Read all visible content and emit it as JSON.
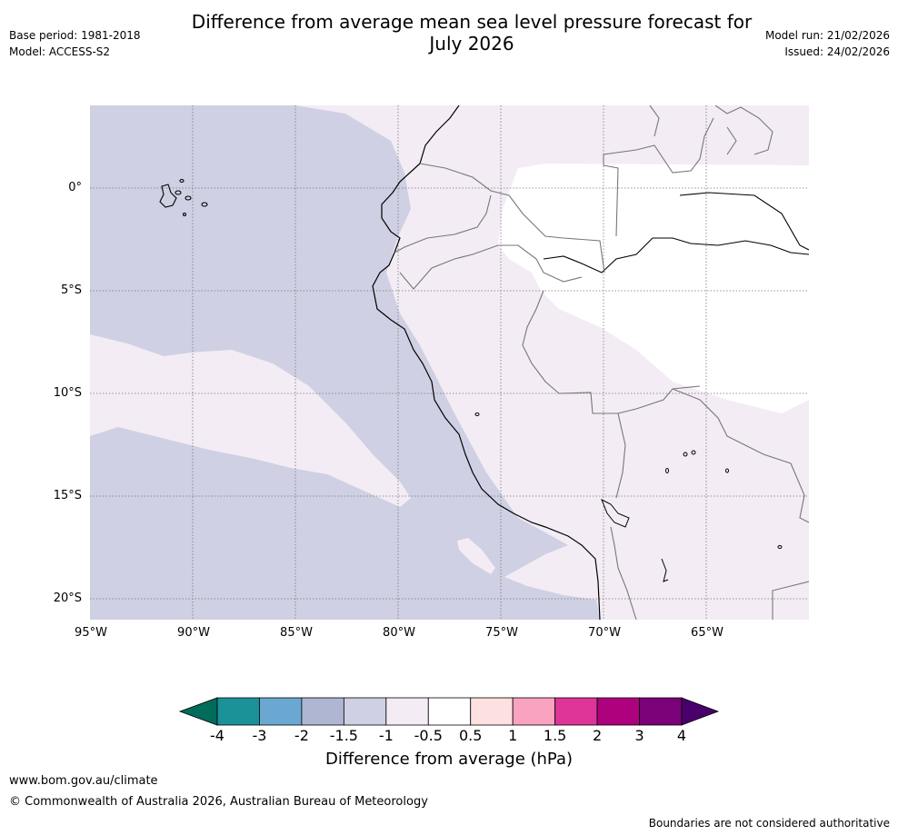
{
  "header": {
    "title_line1": "Difference from average mean sea level pressure forecast for",
    "title_line2": "July 2026",
    "base_period": "Base period: 1981-2018",
    "model": "Model: ACCESS-S2",
    "model_run": "Model run: 21/02/2026",
    "issued": "Issued: 24/02/2026"
  },
  "map": {
    "lat_labels": [
      "0°",
      "5°S",
      "10°S",
      "15°S",
      "20°S"
    ],
    "lon_labels": [
      "95°W",
      "90°W",
      "85°W",
      "80°W",
      "75°W",
      "70°W",
      "65°W"
    ]
  },
  "colorbar": {
    "ticks": [
      "-4",
      "-3",
      "-2",
      "-1.5",
      "-1",
      "-0.5",
      "0.5",
      "1",
      "1.5",
      "2",
      "3",
      "4"
    ],
    "colors": [
      "#1b9198",
      "#6aa8d2",
      "#aeb6d2",
      "#cfd0e3",
      "#f3ecf5",
      "#ffffff",
      "#fde0e0",
      "#f9a3c0",
      "#dd3497",
      "#ae017e",
      "#7a0177"
    ],
    "under_color": "#016c59",
    "over_color": "#49006a",
    "label": "Difference from average (hPa)"
  },
  "footer": {
    "website": "www.bom.gov.au/climate",
    "copyright": "© Commonwealth of Australia 2026, Australian Bureau of Meteorology",
    "disclaimer": "Boundaries are not considered authoritative"
  }
}
